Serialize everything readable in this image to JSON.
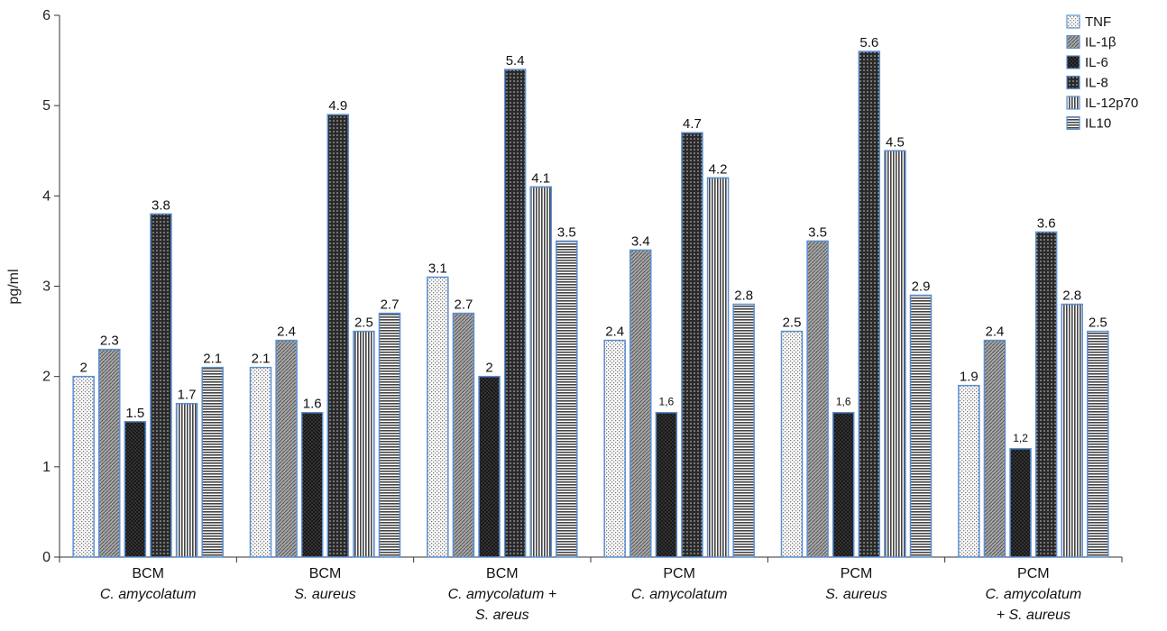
{
  "chart_data": {
    "type": "bar",
    "ylabel": "pg/ml",
    "ylim": [
      0,
      6
    ],
    "yticks": [
      "0",
      "1",
      "2",
      "3",
      "4",
      "5",
      "6"
    ],
    "legend_position": "top-right",
    "categories": [
      {
        "line1": "BCM",
        "line2": "C. amycolatum",
        "line3": ""
      },
      {
        "line1": "BCM",
        "line2": "S. aureus",
        "line3": ""
      },
      {
        "line1": "BCM",
        "line2": "C. amycolatum +",
        "line3": "S. areus"
      },
      {
        "line1": "PCM",
        "line2": "C. amycolatum",
        "line3": ""
      },
      {
        "line1": "PCM",
        "line2": "S. aureus",
        "line3": ""
      },
      {
        "line1": "PCM",
        "line2": "C. amycolatum",
        "line3": "+ S. aureus"
      }
    ],
    "series": [
      {
        "name": "TNF",
        "pattern": "fine-dots",
        "values": [
          2,
          2.1,
          3.1,
          2.4,
          2.5,
          1.9
        ],
        "labels": [
          "2",
          "2.1",
          "3.1",
          "2.4",
          "2.5",
          "1.9"
        ]
      },
      {
        "name": "IL-1β",
        "pattern": "diagonal-grey",
        "values": [
          2.3,
          2.4,
          2.7,
          3.4,
          3.5,
          2.4
        ],
        "labels": [
          "2.3",
          "2.4",
          "2.7",
          "3.4",
          "3.5",
          "2.4"
        ]
      },
      {
        "name": "IL-6",
        "pattern": "dark-crosshatch",
        "values": [
          1.5,
          1.6,
          2,
          1.6,
          1.6,
          1.2
        ],
        "labels": [
          "1.5",
          "1.6",
          "2",
          "1,6",
          "1,6",
          "1,2"
        ]
      },
      {
        "name": "IL-8",
        "pattern": "dark-dots",
        "values": [
          3.8,
          4.9,
          5.4,
          4.7,
          5.6,
          3.6
        ],
        "labels": [
          "3.8",
          "4.9",
          "5.4",
          "4.7",
          "5.6",
          "3.6"
        ]
      },
      {
        "name": "IL-12p70",
        "pattern": "vertical-lines",
        "values": [
          1.7,
          2.5,
          4.1,
          4.2,
          4.5,
          2.8
        ],
        "labels": [
          "1.7",
          "2.5",
          "4.1",
          "4.2",
          "4.5",
          "2.8"
        ]
      },
      {
        "name": "IL10",
        "pattern": "horizontal-lines",
        "values": [
          2.1,
          2.7,
          3.5,
          2.8,
          2.9,
          2.5
        ],
        "labels": [
          "2.1",
          "2.7",
          "3.5",
          "2.8",
          "2.9",
          "2.5"
        ]
      }
    ],
    "colors": {
      "bar_border": "#5b8fd0",
      "axis": "#333333"
    }
  }
}
